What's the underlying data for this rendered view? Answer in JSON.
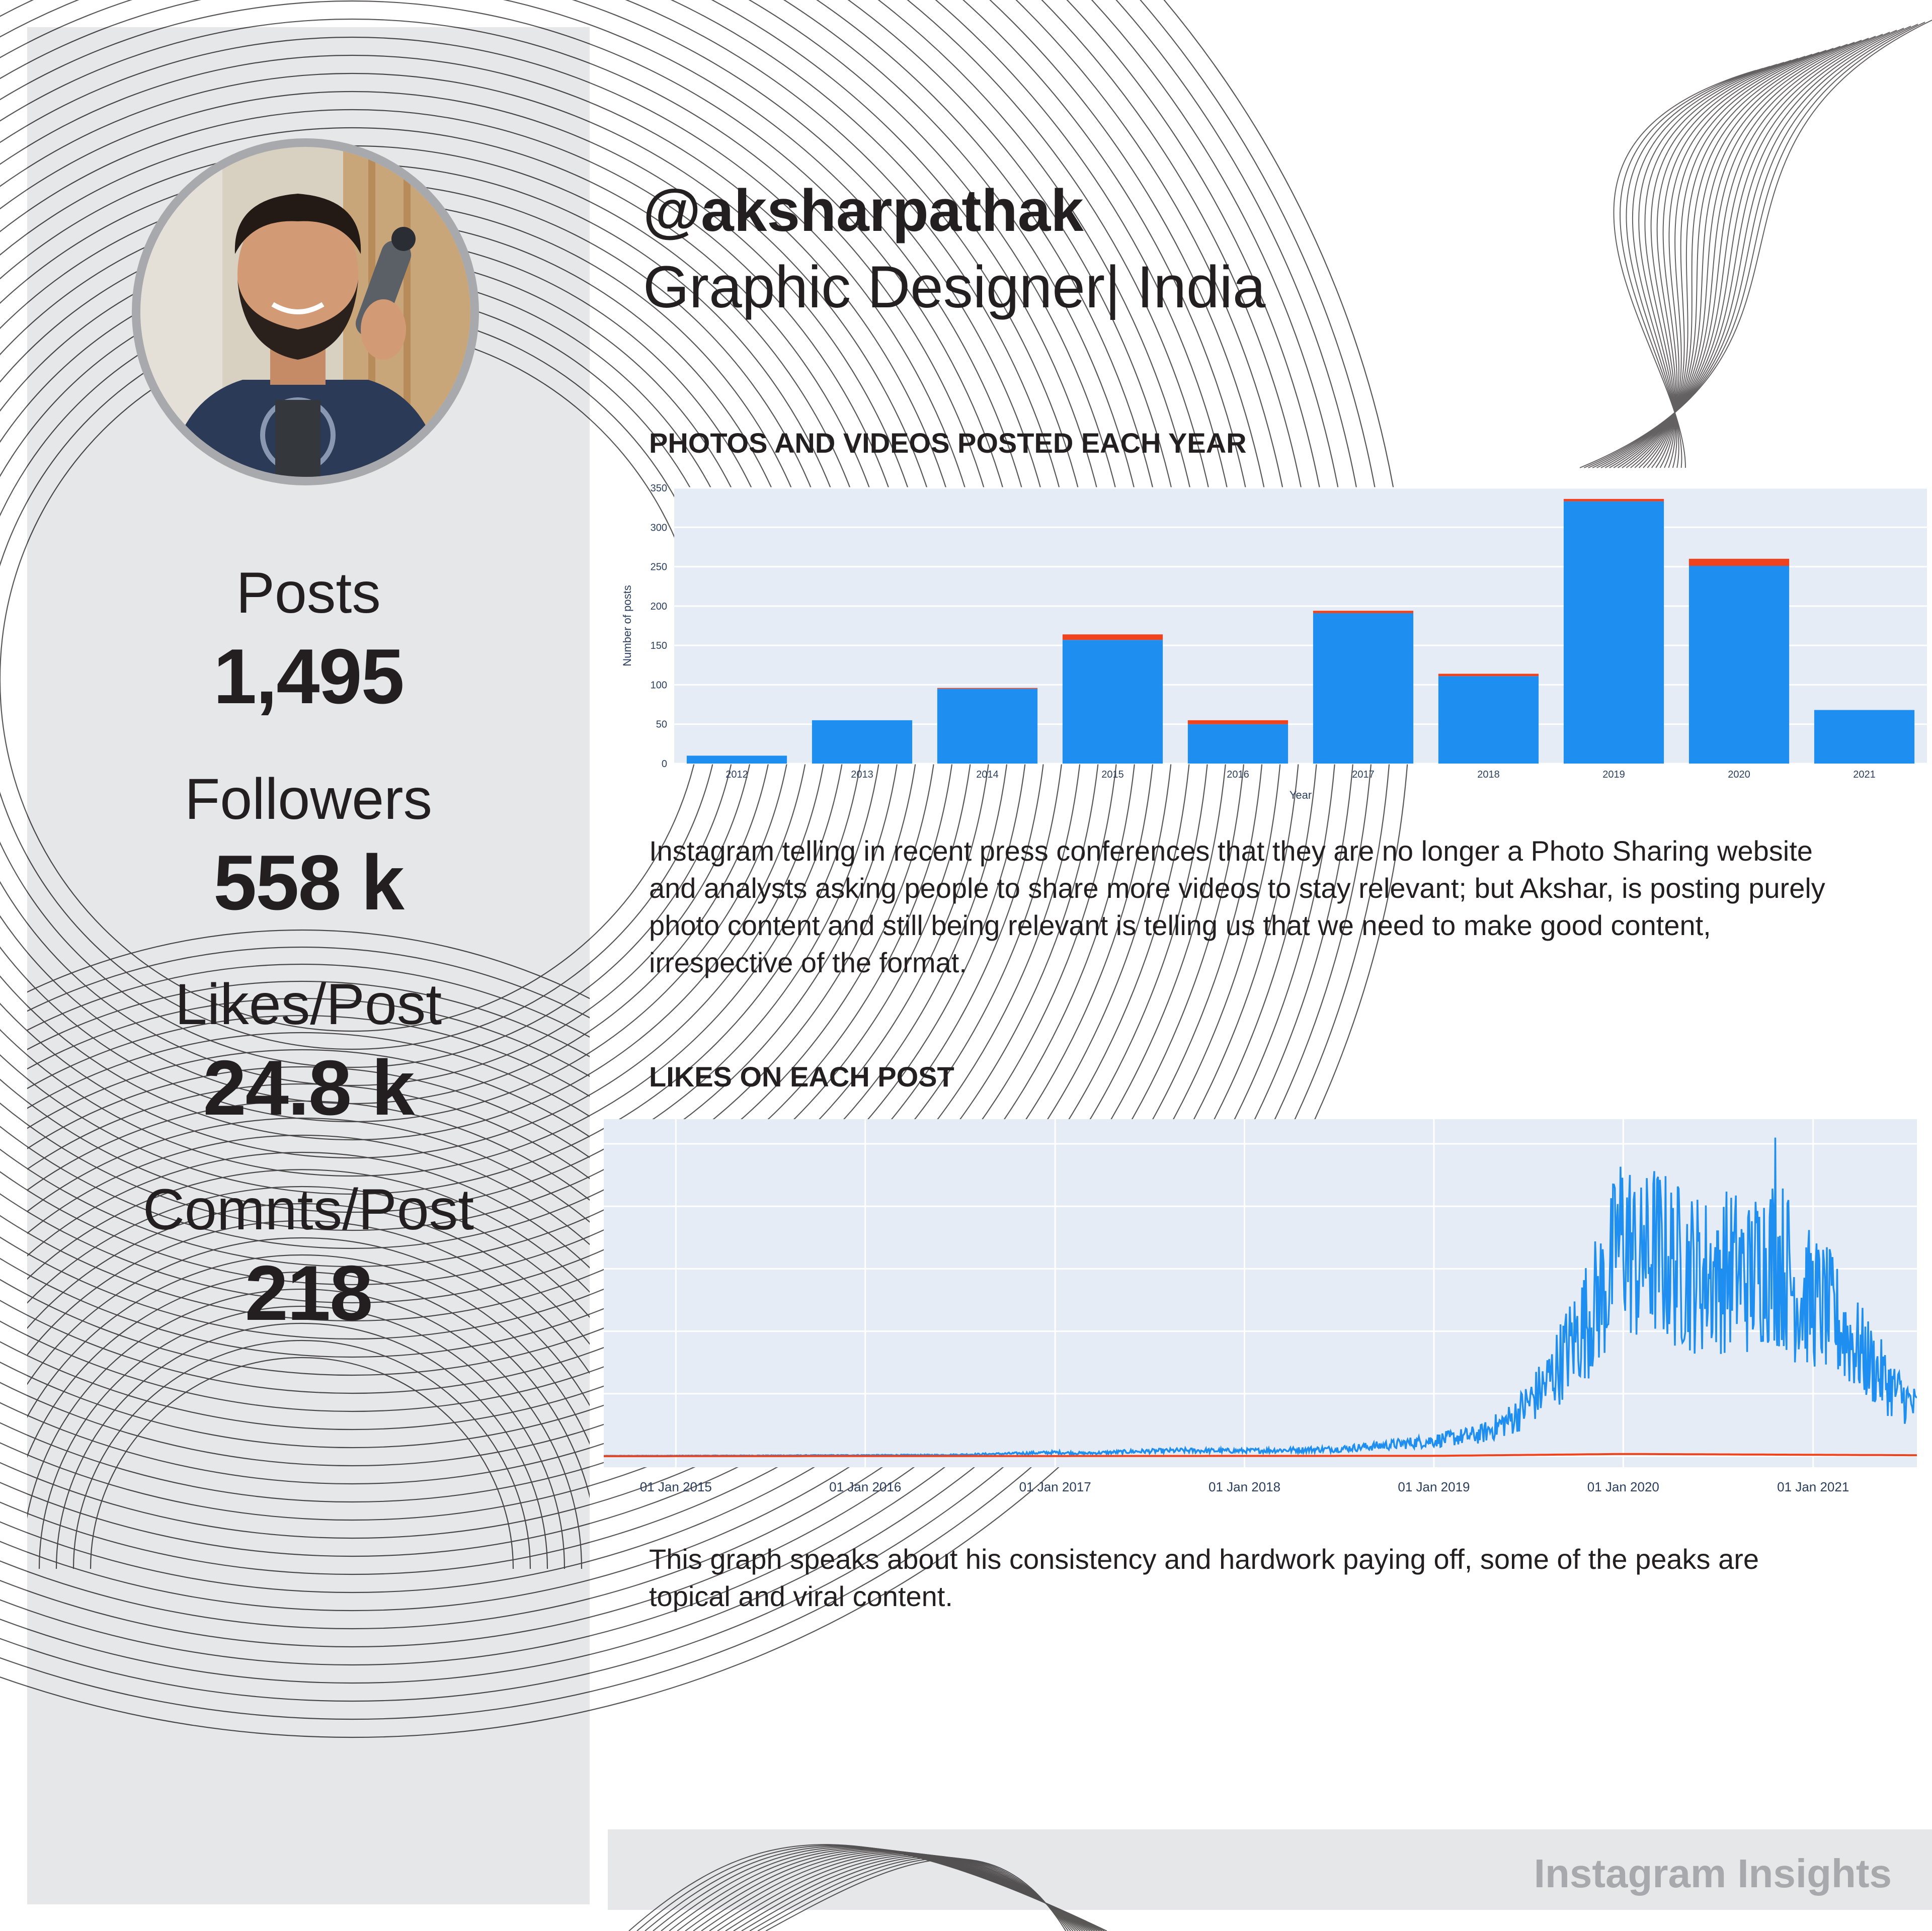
{
  "profile": {
    "handle": "@aksharpathak",
    "subtitle": "Graphic Designer| India"
  },
  "stats": [
    {
      "label": "Posts",
      "value": "1,495"
    },
    {
      "label": "Followers",
      "value": "558 k"
    },
    {
      "label": "Likes/Post",
      "value": "24.8 k"
    },
    {
      "label": "Comnts/Post",
      "value": "218"
    }
  ],
  "sections": {
    "posts_title": "PHOTOS AND VIDEOS POSTED EACH YEAR",
    "posts_paragraph": [
      "Instagram telling in recent press conferences that they are no longer a Photo Sharing website",
      "and analysts asking people to share more videos to stay relevant; but Akshar, is posting purely",
      "photo content and still being relevant is telling us that we need to make good content,",
      "irrespective of the format."
    ],
    "likes_title": "LIKES ON EACH POST",
    "likes_paragraph": [
      "This graph speaks about his consistency and hardwork paying off, some of the peaks are",
      "topical and viral content."
    ]
  },
  "footer": {
    "label": "Instagram Insights"
  },
  "colors": {
    "photo": "#1f8ef1",
    "video": "#f0421c",
    "plot_bg": "#e5ecf6",
    "sidebar": "#e6e7e8"
  },
  "chart_data": [
    {
      "type": "bar",
      "stacked": true,
      "title": "PHOTOS AND VIDEOS POSTED EACH YEAR",
      "xlabel": "Year",
      "ylabel": "Number of posts",
      "categories": [
        "2012",
        "2013",
        "2014",
        "2015",
        "2016",
        "2017",
        "2018",
        "2019",
        "2020",
        "2021"
      ],
      "series": [
        {
          "values": [
            10,
            55,
            95,
            157,
            50,
            191,
            111,
            333,
            251,
            68
          ]
        },
        {
          "values": [
            0,
            0,
            1,
            7,
            5,
            3,
            3,
            3,
            9,
            0
          ]
        }
      ],
      "ylim": [
        0,
        350
      ],
      "yticks": [
        0,
        50,
        100,
        150,
        200,
        250,
        300,
        350
      ],
      "grid": true
    },
    {
      "type": "line",
      "title": "LIKES ON EACH POST",
      "x_tick_labels": [
        "01 Jan 2015",
        "01 Jan 2016",
        "01 Jan 2017",
        "01 Jan 2018",
        "01 Jan 2019",
        "01 Jan 2020",
        "01 Jan 2021"
      ],
      "xlim": [
        "2014-08-15",
        "2021-07-20"
      ],
      "ylim": [
        0,
        105000
      ],
      "yticks": [
        0,
        20000,
        40000,
        60000,
        80000,
        100000
      ],
      "grid": true,
      "series": [
        {
          "key": "likes",
          "points": [
            [
              "2014-08-15",
              100
            ],
            [
              "2015-06-01",
              200
            ],
            [
              "2016-06-01",
              400
            ],
            [
              "2016-10-01",
              800
            ],
            [
              "2017-01-01",
              1200
            ],
            [
              "2017-03-01",
              900
            ],
            [
              "2017-06-01",
              1500
            ],
            [
              "2017-09-01",
              1800
            ],
            [
              "2018-01-01",
              1700
            ],
            [
              "2018-04-01",
              2000
            ],
            [
              "2018-07-01",
              2300
            ],
            [
              "2018-10-01",
              3500
            ],
            [
              "2019-01-01",
              5000
            ],
            [
              "2019-04-01",
              7000
            ],
            [
              "2019-06-01",
              12000
            ],
            [
              "2019-08-01",
              22000
            ],
            [
              "2019-10-01",
              38000
            ],
            [
              "2019-12-01",
              55000
            ],
            [
              "2020-01-01",
              72000
            ],
            [
              "2020-02-01",
              60000
            ],
            [
              "2020-03-01",
              66000
            ],
            [
              "2020-04-01",
              62000
            ],
            [
              "2020-06-01",
              58000
            ],
            [
              "2020-08-01",
              60000
            ],
            [
              "2020-09-01",
              57000
            ],
            [
              "2020-10-01",
              64000
            ],
            [
              "2020-11-01",
              62000
            ],
            [
              "2020-12-01",
              52000
            ],
            [
              "2021-01-01",
              50000
            ],
            [
              "2021-02-01",
              46000
            ],
            [
              "2021-03-01",
              40000
            ],
            [
              "2021-04-01",
              34000
            ],
            [
              "2021-05-01",
              28000
            ],
            [
              "2021-06-01",
              22000
            ],
            [
              "2021-07-20",
              15000
            ]
          ],
          "peaks": [
            [
              "2020-10-20",
              102000
            ],
            [
              "2020-11-15",
              82000
            ],
            [
              "2019-12-20",
              75000
            ],
            [
              "2020-02-10",
              74000
            ],
            [
              "2020-07-01",
              72000
            ]
          ]
        },
        {
          "key": "comments",
          "points": [
            [
              "2014-08-15",
              0
            ],
            [
              "2019-01-01",
              100
            ],
            [
              "2020-01-01",
              700
            ],
            [
              "2021-07-20",
              300
            ]
          ]
        }
      ]
    }
  ]
}
